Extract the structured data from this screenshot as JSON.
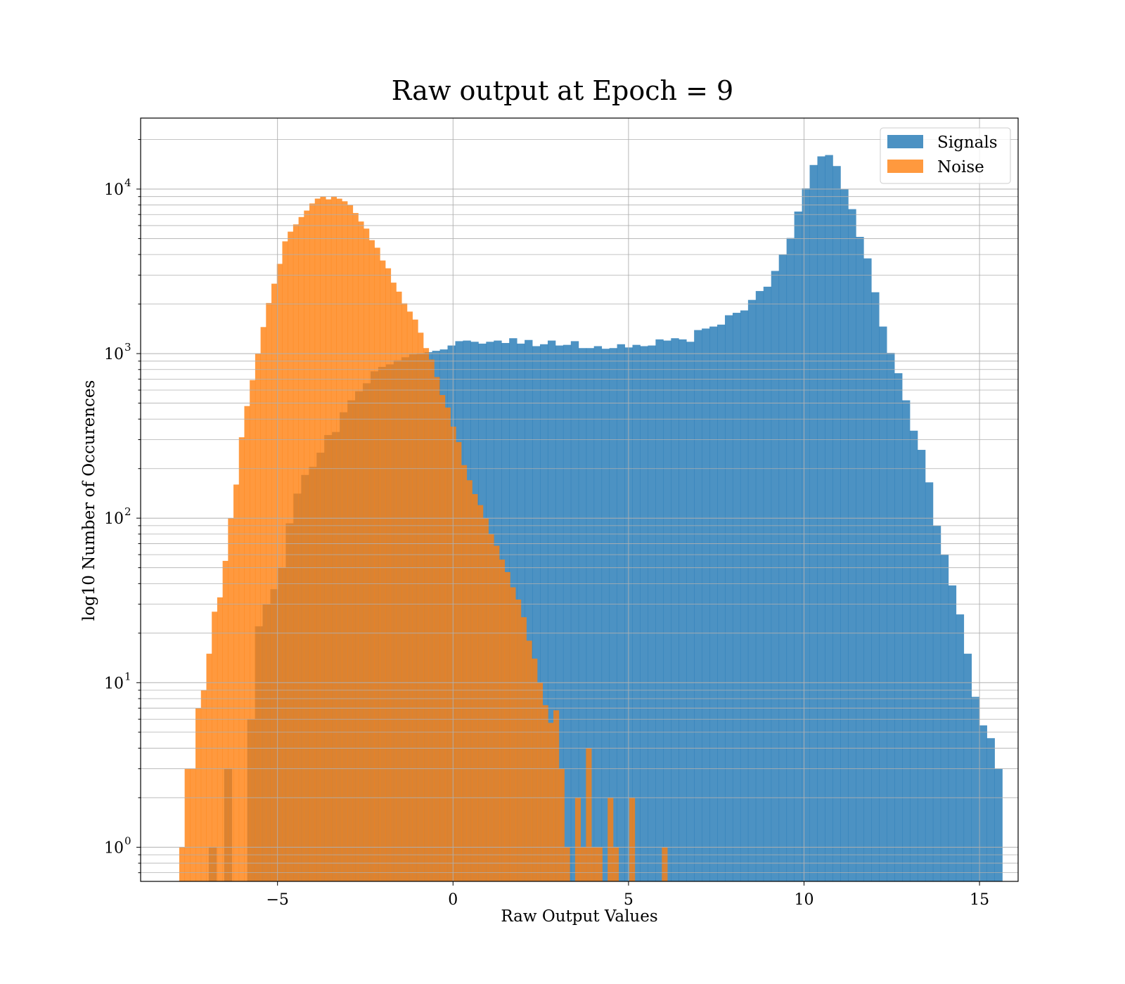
{
  "chart_data": {
    "type": "bar",
    "subtype": "overlapping histogram",
    "title": "Raw output at Epoch = 9",
    "xlabel": "Raw Output Values",
    "ylabel": "log10 Number of Occurences",
    "yscale": "log",
    "xlim": [
      -8.9,
      16.1
    ],
    "ylim": [
      0.62,
      27000
    ],
    "x_ticks": [
      -5,
      0,
      5,
      10,
      15
    ],
    "x_tick_labels": [
      "−5",
      "0",
      "5",
      "10",
      "15"
    ],
    "y_ticks": [
      1,
      10,
      100,
      1000,
      10000
    ],
    "y_tick_labels": [
      {
        "base": "10",
        "exp": "0"
      },
      {
        "base": "10",
        "exp": "1"
      },
      {
        "base": "10",
        "exp": "2"
      },
      {
        "base": "10",
        "exp": "3"
      },
      {
        "base": "10",
        "exp": "4"
      }
    ],
    "grid": true,
    "legend_position": "upper-right",
    "series": [
      {
        "name": "Signals",
        "color": "#1f77b4",
        "opacity": 0.8,
        "bin_start": -6.96,
        "bin_width": 0.2195,
        "values": [
          1,
          0,
          3,
          0,
          0,
          6,
          22,
          30,
          37,
          50,
          93,
          141,
          183,
          205,
          250,
          320,
          334,
          440,
          520,
          590,
          660,
          780,
          830,
          860,
          910,
          950,
          990,
          1000,
          1020,
          1040,
          1060,
          1120,
          1190,
          1200,
          1180,
          1150,
          1180,
          1200,
          1160,
          1240,
          1150,
          1210,
          1110,
          1140,
          1200,
          1120,
          1130,
          1190,
          1080,
          1080,
          1110,
          1070,
          1080,
          1140,
          1090,
          1130,
          1110,
          1120,
          1220,
          1200,
          1240,
          1220,
          1180,
          1390,
          1420,
          1460,
          1500,
          1710,
          1770,
          1830,
          2120,
          2400,
          2550,
          3180,
          4000,
          5040,
          7300,
          10100,
          14000,
          15800,
          16100,
          13800,
          10000,
          7550,
          5120,
          3790,
          2360,
          1460,
          1010,
          760,
          520,
          340,
          260,
          165,
          90,
          60,
          39,
          26,
          15,
          8.2,
          5.5,
          4.6,
          3.0
        ]
      },
      {
        "name": "Noise",
        "color": "#ff7f0e",
        "opacity": 0.8,
        "bin_start": -7.8,
        "bin_width": 0.1545,
        "values": [
          1,
          3,
          3,
          7,
          9,
          15,
          27,
          33,
          55,
          100,
          160,
          310,
          480,
          690,
          1000,
          1450,
          2030,
          2660,
          3510,
          4810,
          5510,
          6100,
          6760,
          7400,
          8170,
          8750,
          8990,
          8660,
          8970,
          8740,
          8430,
          7980,
          7150,
          6350,
          5750,
          4890,
          4400,
          3680,
          3300,
          2700,
          2380,
          2020,
          1800,
          1610,
          1340,
          1080,
          920,
          720,
          560,
          470,
          360,
          290,
          210,
          170,
          140,
          120,
          100,
          80,
          68,
          56,
          47,
          38,
          32,
          25,
          18,
          14,
          10,
          7.3,
          5.7,
          6.8,
          3.0,
          1.0,
          0,
          2.0,
          1.0,
          4.0,
          1.0,
          1.0,
          0,
          2.0,
          1.0,
          0,
          0,
          2.0,
          0,
          0,
          0,
          0,
          0,
          1.0
        ]
      }
    ]
  }
}
